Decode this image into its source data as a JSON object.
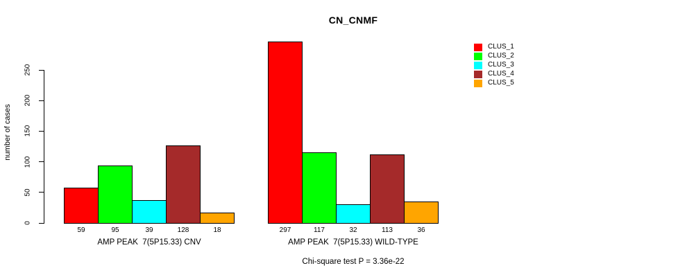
{
  "chart_data": {
    "type": "bar",
    "title": "CN_CNMF",
    "ylabel": "number of cases",
    "xlabel": "",
    "ylim": [
      0,
      250
    ],
    "yticks": [
      0,
      50,
      100,
      150,
      200,
      250
    ],
    "grid": false,
    "legend_position": "top-right",
    "categories": [
      "AMP PEAK  7(5P15.33) CNV",
      "AMP PEAK  7(5P15.33) WILD-TYPE"
    ],
    "series": [
      {
        "name": "CLUS_1",
        "color": "#FF0000",
        "values": [
          59,
          297
        ]
      },
      {
        "name": "CLUS_2",
        "color": "#00FF00",
        "values": [
          95,
          117
        ]
      },
      {
        "name": "CLUS_3",
        "color": "#00FFFF",
        "values": [
          39,
          32
        ]
      },
      {
        "name": "CLUS_4",
        "color": "#A52A2A",
        "values": [
          128,
          113
        ]
      },
      {
        "name": "CLUS_5",
        "color": "#FFA500",
        "values": [
          18,
          36
        ]
      }
    ],
    "values_shown_below_bars": true,
    "footnote": "Chi-square test P = 3.36e-22"
  }
}
